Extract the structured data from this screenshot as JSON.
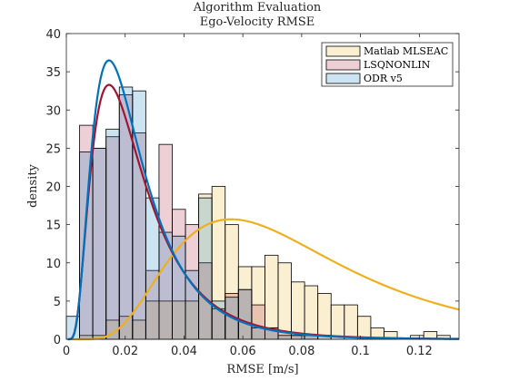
{
  "chart_data": {
    "type": "bar",
    "title": "Algorithm Evaluation",
    "subtitle": "Ego-Velocity RMSE",
    "xlabel": "RMSE [m/s]",
    "ylabel": "density",
    "xlim": [
      0,
      0.1335
    ],
    "ylim": [
      0,
      40
    ],
    "xticks": [
      0,
      0.02,
      0.04,
      0.06,
      0.08,
      0.1,
      0.12
    ],
    "xtick_labels": [
      "0",
      "0.02",
      "0.04",
      "0.06",
      "0.08",
      "0.1",
      "0.12"
    ],
    "yticks": [
      0,
      5,
      10,
      15,
      20,
      25,
      30,
      35,
      40
    ],
    "ytick_labels": [
      "0",
      "5",
      "10",
      "15",
      "20",
      "25",
      "30",
      "35",
      "40"
    ],
    "grid": false,
    "legend_position": "top-right",
    "bin_width": 0.0045,
    "series": [
      {
        "name": "Matlab MLSEAC",
        "color": "#EDB120",
        "bin_start": 0.0045,
        "densities": [
          0.5,
          0.5,
          2.5,
          3,
          2.5,
          5,
          5,
          5,
          5,
          19,
          20,
          15,
          9.5,
          9.5,
          11,
          10,
          7.5,
          7,
          6,
          4.5,
          4.5,
          3,
          1.5,
          1,
          0,
          0.5,
          1,
          0.5
        ],
        "curve": {
          "peak_x": 0.056,
          "peak_y": 15.7
        }
      },
      {
        "name": "LSQNONLIN",
        "color": "#A2142F",
        "bin_start": 0.0045,
        "densities": [
          28,
          25,
          26.5,
          32,
          27,
          9,
          25.5,
          17,
          15,
          10,
          4,
          6,
          6.5,
          4.5,
          1.5,
          1,
          0.5,
          0.5
        ],
        "curve": {
          "peak_x": 0.0145,
          "peak_y": 33.3
        }
      },
      {
        "name": "ODR v5",
        "color": "#0072BD",
        "bin_start": 0.0,
        "densities": [
          3,
          24.5,
          25,
          27.5,
          33,
          32.5,
          18.5,
          14,
          13.5,
          9,
          18.5,
          5,
          5.5,
          6.5,
          1.5,
          1.5,
          0.5,
          0.5,
          0.5,
          0.5
        ],
        "curve": {
          "peak_x": 0.0145,
          "peak_y": 36.5
        }
      }
    ]
  }
}
